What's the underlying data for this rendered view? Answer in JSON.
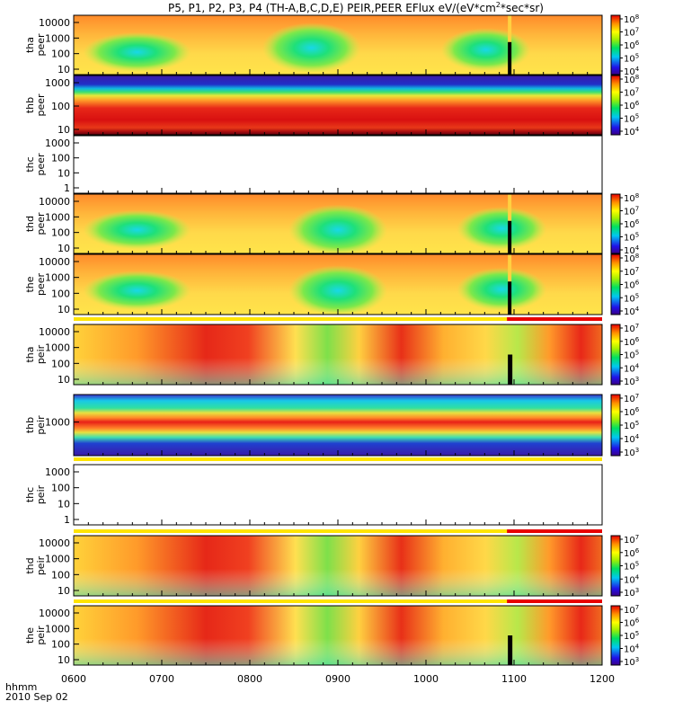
{
  "title": "P5, P1, P2, P3, P4 (TH-A,B,C,D,E) PEIR,PEER EFlux eV/(eV*cm2*sec*sr)",
  "title_parts": {
    "main": "P5, P1, P2, P3, P4 (TH-A,B,C,D,E) PEIR,PEER EFlux eV/(eV*cm",
    "sup": "2",
    "tail": "*sec*sr)"
  },
  "x_axis": {
    "label_top": "hhmm",
    "label_bottom": "2010 Sep 02",
    "ticks": [
      "0600",
      "0700",
      "0800",
      "0900",
      "1000",
      "1100",
      "1200"
    ],
    "range_hours": [
      6,
      12
    ]
  },
  "chart_data": [
    {
      "type": "heatmap",
      "probe": "tha",
      "species": "peer",
      "ylabel": [
        "tha",
        "peer"
      ],
      "yscale": "log",
      "yticks": [
        "10",
        "100",
        "1000",
        "10000"
      ],
      "colorbar": {
        "scale": "log",
        "ticks": [
          "10^4",
          "10^5",
          "10^6",
          "10^7",
          "10^8"
        ]
      }
    },
    {
      "type": "heatmap",
      "probe": "thb",
      "species": "peer",
      "ylabel": [
        "thb",
        "peer"
      ],
      "yscale": "log",
      "yticks": [
        "10",
        "100",
        "1000"
      ],
      "colorbar": {
        "scale": "log",
        "ticks": [
          "10^4",
          "10^5",
          "10^6",
          "10^7",
          "10^8"
        ]
      }
    },
    {
      "type": "heatmap",
      "probe": "thc",
      "species": "peer",
      "ylabel": [
        "thc",
        "peer"
      ],
      "yscale": "log",
      "yticks": [
        "1",
        "10",
        "100",
        "1000"
      ],
      "empty": true
    },
    {
      "type": "heatmap",
      "probe": "thd",
      "species": "peer",
      "ylabel": [
        "thd",
        "peer"
      ],
      "yscale": "log",
      "yticks": [
        "10",
        "100",
        "1000",
        "10000"
      ],
      "colorbar": {
        "scale": "log",
        "ticks": [
          "10^4",
          "10^5",
          "10^6",
          "10^7",
          "10^8"
        ]
      }
    },
    {
      "type": "heatmap",
      "probe": "the",
      "species": "peer",
      "ylabel": [
        "the",
        "peer"
      ],
      "yscale": "log",
      "yticks": [
        "10",
        "100",
        "1000",
        "10000"
      ],
      "colorbar": {
        "scale": "log",
        "ticks": [
          "10^4",
          "10^5",
          "10^6",
          "10^7",
          "10^8"
        ]
      }
    },
    {
      "type": "heatmap",
      "probe": "tha",
      "species": "peir",
      "ylabel": [
        "tha",
        "peir"
      ],
      "yscale": "log",
      "yticks": [
        "10",
        "100",
        "1000",
        "10000"
      ],
      "colorbar": {
        "scale": "log",
        "ticks": [
          "10^3",
          "10^4",
          "10^5",
          "10^6",
          "10^7"
        ]
      }
    },
    {
      "type": "heatmap",
      "probe": "thb",
      "species": "peir",
      "ylabel": [
        "thb",
        "peir"
      ],
      "yscale": "log",
      "yticks": [
        "1000"
      ],
      "colorbar": {
        "scale": "log",
        "ticks": [
          "10^3",
          "10^4",
          "10^5",
          "10^6",
          "10^7"
        ]
      }
    },
    {
      "type": "heatmap",
      "probe": "thc",
      "species": "peir",
      "ylabel": [
        "thc",
        "peir"
      ],
      "yscale": "log",
      "yticks": [
        "1",
        "10",
        "100",
        "1000"
      ],
      "empty": true
    },
    {
      "type": "heatmap",
      "probe": "thd",
      "species": "peir",
      "ylabel": [
        "thd",
        "peir"
      ],
      "yscale": "log",
      "yticks": [
        "10",
        "100",
        "1000",
        "10000"
      ],
      "colorbar": {
        "scale": "log",
        "ticks": [
          "10^3",
          "10^4",
          "10^5",
          "10^6",
          "10^7"
        ]
      }
    },
    {
      "type": "heatmap",
      "probe": "the",
      "species": "peir",
      "ylabel": [
        "the",
        "peir"
      ],
      "yscale": "log",
      "yticks": [
        "10",
        "100",
        "1000",
        "10000"
      ],
      "colorbar": {
        "scale": "log",
        "ticks": [
          "10^3",
          "10^4",
          "10^5",
          "10^6",
          "10^7"
        ]
      }
    }
  ]
}
